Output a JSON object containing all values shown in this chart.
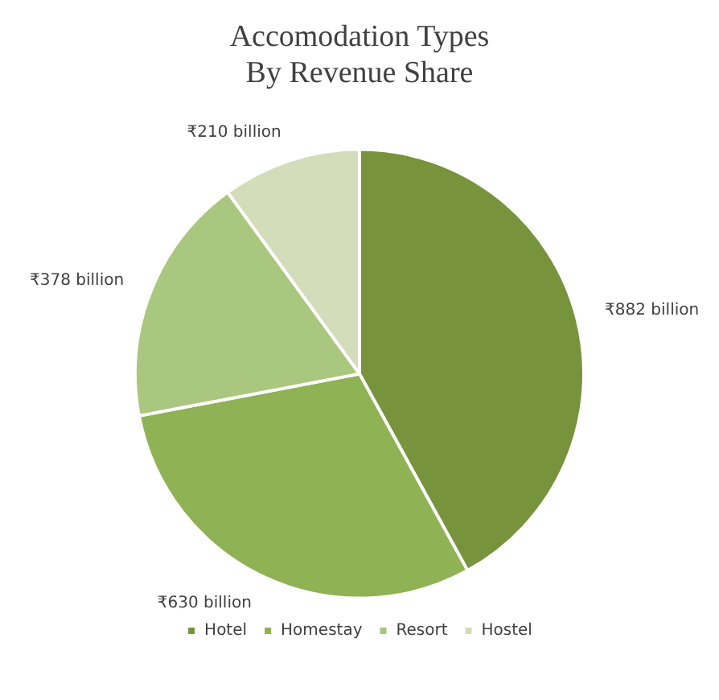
{
  "chart_data": {
    "type": "pie",
    "title": "Accomodation Types\nBy Revenue Share",
    "categories": [
      "Hotel",
      "Homestay",
      "Resort",
      "Hostel"
    ],
    "values": [
      882,
      630,
      378,
      210
    ],
    "colors": [
      "#77933c",
      "#8fb254",
      "#a9c77e",
      "#d3ddb9"
    ],
    "value_labels": [
      "₹882 billion",
      "₹630 billion",
      "₹378 billion",
      "₹210 billion"
    ],
    "legend": "bottom"
  }
}
